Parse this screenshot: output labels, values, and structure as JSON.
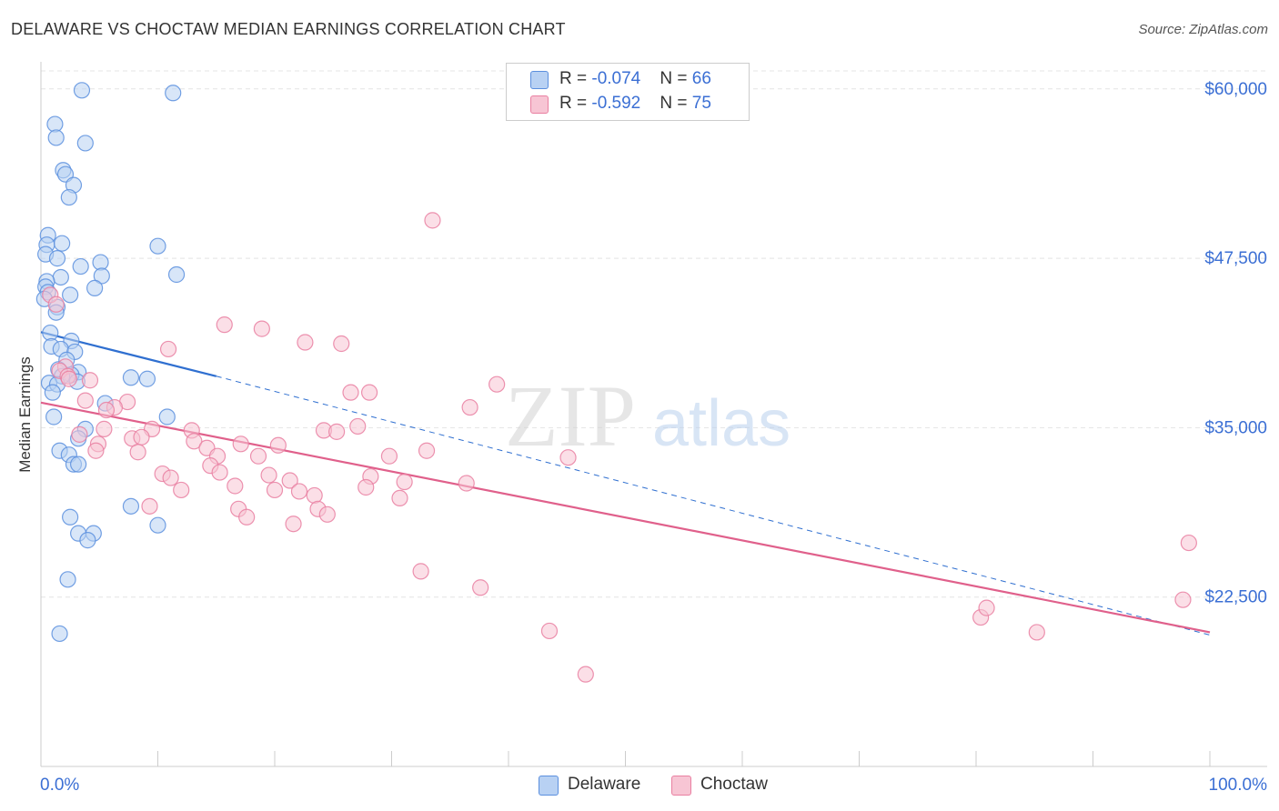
{
  "title": "DELAWARE VS CHOCTAW MEDIAN EARNINGS CORRELATION CHART",
  "source": "Source: ZipAtlas.com",
  "watermark": {
    "part1": "ZIP",
    "part2": "atlas"
  },
  "legend": {
    "rows": [
      {
        "r_label": "R = ",
        "r_value": "-0.074",
        "n_label": "N = ",
        "n_value": "66"
      },
      {
        "r_label": "R = ",
        "r_value": "-0.592",
        "n_label": "N = ",
        "n_value": "75"
      }
    ]
  },
  "bottom_legend": [
    "Delaware",
    "Choctaw"
  ],
  "chart_data": {
    "type": "scatter",
    "title": "DELAWARE VS CHOCTAW MEDIAN EARNINGS CORRELATION CHART",
    "xlabel": "",
    "ylabel": "Median Earnings",
    "xlim": [
      0,
      100
    ],
    "ylim": [
      10000,
      62000
    ],
    "x_tick_labels": [
      "0.0%",
      "100.0%"
    ],
    "y_ticks": [
      22500,
      35000,
      47500,
      60000
    ],
    "y_tick_labels": [
      "$22,500",
      "$35,000",
      "$47,500",
      "$60,000"
    ],
    "grid": true,
    "colors": {
      "delaware": "#5b8fde",
      "choctaw": "#e97fa1",
      "delaware_fill": "#b8d1f3",
      "choctaw_fill": "#f7c5d4",
      "axis_label": "#3b6fd4",
      "grid": "#e4e4e4"
    },
    "series": [
      {
        "name": "Delaware",
        "r": -0.074,
        "n": 66,
        "trend": {
          "x0": 0,
          "y0": 42050,
          "x1": 15,
          "y1": 38800,
          "dash_to_x": 100,
          "dash_to_y": 19700
        },
        "points": [
          [
            3.5,
            59900
          ],
          [
            11.3,
            59700
          ],
          [
            1.2,
            57400
          ],
          [
            1.3,
            56400
          ],
          [
            3.8,
            56000
          ],
          [
            1.9,
            54000
          ],
          [
            2.1,
            53700
          ],
          [
            2.8,
            52900
          ],
          [
            2.4,
            52000
          ],
          [
            0.6,
            49200
          ],
          [
            0.5,
            48500
          ],
          [
            1.8,
            48600
          ],
          [
            10,
            48400
          ],
          [
            0.4,
            47800
          ],
          [
            1.4,
            47500
          ],
          [
            5.1,
            47200
          ],
          [
            3.4,
            46900
          ],
          [
            11.6,
            46300
          ],
          [
            5.2,
            46200
          ],
          [
            1.7,
            46100
          ],
          [
            0.5,
            45800
          ],
          [
            0.4,
            45400
          ],
          [
            4.6,
            45300
          ],
          [
            0.6,
            45000
          ],
          [
            2.5,
            44800
          ],
          [
            0.3,
            44500
          ],
          [
            1.4,
            43900
          ],
          [
            1.3,
            43500
          ],
          [
            0.8,
            42000
          ],
          [
            0.9,
            41000
          ],
          [
            2.6,
            41400
          ],
          [
            1.7,
            40800
          ],
          [
            2.9,
            40600
          ],
          [
            2.2,
            40000
          ],
          [
            1.5,
            39300
          ],
          [
            3.2,
            39100
          ],
          [
            2.6,
            38900
          ],
          [
            1.8,
            38800
          ],
          [
            7.7,
            38700
          ],
          [
            9.1,
            38600
          ],
          [
            0.7,
            38300
          ],
          [
            1.4,
            38200
          ],
          [
            3.1,
            38400
          ],
          [
            1,
            37600
          ],
          [
            5.5,
            36800
          ],
          [
            1.1,
            35800
          ],
          [
            10.8,
            35800
          ],
          [
            3.8,
            34900
          ],
          [
            3.2,
            34200
          ],
          [
            1.6,
            33300
          ],
          [
            2.4,
            33000
          ],
          [
            2.8,
            32300
          ],
          [
            3.2,
            32300
          ],
          [
            7.7,
            29200
          ],
          [
            2.5,
            28400
          ],
          [
            10,
            27800
          ],
          [
            3.2,
            27200
          ],
          [
            4.5,
            27200
          ],
          [
            4,
            26700
          ],
          [
            2.3,
            23800
          ],
          [
            1.6,
            19800
          ]
        ]
      },
      {
        "name": "Choctaw",
        "r": -0.592,
        "n": 75,
        "trend": {
          "x0": 0,
          "y0": 36850,
          "x1": 100,
          "y1": 19900
        },
        "points": [
          [
            33.5,
            50300
          ],
          [
            15.7,
            42600
          ],
          [
            18.9,
            42300
          ],
          [
            22.6,
            41300
          ],
          [
            25.7,
            41200
          ],
          [
            10.9,
            40800
          ],
          [
            0.8,
            44800
          ],
          [
            1.3,
            44100
          ],
          [
            2.1,
            39500
          ],
          [
            1.6,
            39200
          ],
          [
            2.3,
            38800
          ],
          [
            2.4,
            38600
          ],
          [
            4.2,
            38500
          ],
          [
            39,
            38200
          ],
          [
            26.5,
            37600
          ],
          [
            28.1,
            37600
          ],
          [
            7.4,
            36900
          ],
          [
            3.8,
            37000
          ],
          [
            6.3,
            36500
          ],
          [
            5.6,
            36300
          ],
          [
            36.7,
            36500
          ],
          [
            5.4,
            34900
          ],
          [
            9.5,
            34900
          ],
          [
            12.9,
            34800
          ],
          [
            24.2,
            34800
          ],
          [
            25.3,
            34700
          ],
          [
            27.1,
            35100
          ],
          [
            3.3,
            34500
          ],
          [
            7.8,
            34200
          ],
          [
            8.6,
            34300
          ],
          [
            13.1,
            34000
          ],
          [
            17.1,
            33800
          ],
          [
            4.9,
            33800
          ],
          [
            20.3,
            33700
          ],
          [
            14.2,
            33500
          ],
          [
            4.7,
            33300
          ],
          [
            8.3,
            33200
          ],
          [
            33,
            33300
          ],
          [
            15.1,
            32900
          ],
          [
            18.6,
            32900
          ],
          [
            29.8,
            32900
          ],
          [
            45.1,
            32800
          ],
          [
            14.5,
            32200
          ],
          [
            10.4,
            31600
          ],
          [
            15.3,
            31700
          ],
          [
            19.5,
            31500
          ],
          [
            28.2,
            31400
          ],
          [
            11.1,
            31300
          ],
          [
            21.3,
            31100
          ],
          [
            31.1,
            31000
          ],
          [
            36.4,
            30900
          ],
          [
            16.6,
            30700
          ],
          [
            12,
            30400
          ],
          [
            20,
            30400
          ],
          [
            22.1,
            30300
          ],
          [
            23.4,
            30000
          ],
          [
            27.8,
            30600
          ],
          [
            30.7,
            29800
          ],
          [
            16.9,
            29000
          ],
          [
            9.3,
            29200
          ],
          [
            23.7,
            29000
          ],
          [
            17.6,
            28400
          ],
          [
            24.5,
            28600
          ],
          [
            21.6,
            27900
          ],
          [
            32.5,
            24400
          ],
          [
            37.6,
            23200
          ],
          [
            98.2,
            26500
          ],
          [
            97.7,
            22300
          ],
          [
            80.4,
            21000
          ],
          [
            80.9,
            21700
          ],
          [
            85.2,
            19900
          ],
          [
            43.5,
            20000
          ],
          [
            46.6,
            16800
          ]
        ]
      }
    ]
  }
}
